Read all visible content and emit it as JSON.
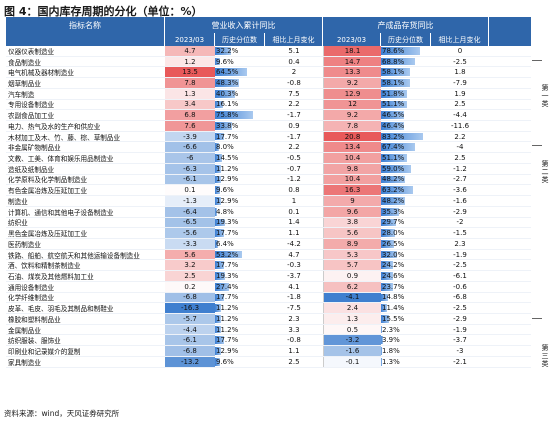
{
  "title": "图 4：国内库存周期的分化（单位：%）",
  "source": "资料来源：wind，天风证券研究所",
  "headers": {
    "indicator": "指标名称",
    "group1": "营业收入累计同比",
    "group2": "产成品存货同比",
    "date1": "2023/03",
    "hist1": "历史分位数",
    "chg1": "相比上月变化",
    "date2": "2023/03",
    "hist2": "历史分位数",
    "chg2": "相比上月变化"
  },
  "categories": {
    "cat1": "第一类",
    "cat2": "第二类",
    "cat3": "第三类"
  },
  "colors": {
    "header": "#2f66aa",
    "red": "#e8595a",
    "blue": "#3f7fcf",
    "light_red": "#f7c9c6",
    "light_blue": "#c9dbf2"
  },
  "rows": [
    {
      "name": "仪器仪表制造业",
      "rev": "4.7",
      "rev_pct": "32.2%",
      "rev_chg": "5.1",
      "inv": "18.1",
      "inv_pct": "78.6%",
      "inv_chg": "0"
    },
    {
      "name": "食品制造业",
      "rev": "1.2",
      "rev_pct": "9.6%",
      "rev_chg": "0.4",
      "inv": "14.7",
      "inv_pct": "68.8%",
      "inv_chg": "-2.5"
    },
    {
      "name": "电气机械及器材制造业",
      "rev": "13.5",
      "rev_pct": "64.5%",
      "rev_chg": "2",
      "inv": "13.3",
      "inv_pct": "58.1%",
      "inv_chg": "1.8"
    },
    {
      "name": "烟草制品业",
      "rev": "7.8",
      "rev_pct": "48.3%",
      "rev_chg": "-0.8",
      "inv": "9.2",
      "inv_pct": "58.1%",
      "inv_chg": "-7.9"
    },
    {
      "name": "汽车制造",
      "rev": "1.3",
      "rev_pct": "40.3%",
      "rev_chg": "7.5",
      "inv": "12.9",
      "inv_pct": "51.8%",
      "inv_chg": "1.9"
    },
    {
      "name": "专用设备制造业",
      "rev": "3.4",
      "rev_pct": "16.1%",
      "rev_chg": "2.2",
      "inv": "12",
      "inv_pct": "51.1%",
      "inv_chg": "2.5"
    },
    {
      "name": "农副食品加工业",
      "rev": "6.8",
      "rev_pct": "75.8%",
      "rev_chg": "-1.7",
      "inv": "9.2",
      "inv_pct": "46.5%",
      "inv_chg": "-4.4"
    },
    {
      "name": "电力、热气及水的生产和供应业",
      "rev": "7.6",
      "rev_pct": "33.8%",
      "rev_chg": "0.9",
      "inv": "7.8",
      "inv_pct": "46.4%",
      "inv_chg": "-11.6"
    },
    {
      "name": "木材加工及木、竹、藤、棕、草制品业",
      "rev": "-3.9",
      "rev_pct": "17.7%",
      "rev_chg": "-1.7",
      "inv": "20.8",
      "inv_pct": "83.2%",
      "inv_chg": "2.2"
    },
    {
      "name": "非金属矿物制品业",
      "rev": "-6.6",
      "rev_pct": "8.0%",
      "rev_chg": "2.2",
      "inv": "13.4",
      "inv_pct": "67.4%",
      "inv_chg": "-4"
    },
    {
      "name": "文教、工美、体育和娱乐用品制造业",
      "rev": "-6",
      "rev_pct": "14.5%",
      "rev_chg": "-0.5",
      "inv": "10.4",
      "inv_pct": "51.1%",
      "inv_chg": "2.5"
    },
    {
      "name": "造纸及纸制品业",
      "rev": "-6.3",
      "rev_pct": "11.2%",
      "rev_chg": "-0.7",
      "inv": "9.8",
      "inv_pct": "59.0%",
      "inv_chg": "-1.2"
    },
    {
      "name": "化学原料及化学制品制造业",
      "rev": "-6.1",
      "rev_pct": "12.9%",
      "rev_chg": "-1.2",
      "inv": "10.4",
      "inv_pct": "48.2%",
      "inv_chg": "-2.7"
    },
    {
      "name": "有色金属冶炼及压延加工业",
      "rev": "0.1",
      "rev_pct": "9.6%",
      "rev_chg": "0.8",
      "inv": "16.3",
      "inv_pct": "63.2%",
      "inv_chg": "-3.6"
    },
    {
      "name": "制造业",
      "rev": "-1.3",
      "rev_pct": "12.9%",
      "rev_chg": "1",
      "inv": "9",
      "inv_pct": "48.2%",
      "inv_chg": "-1.6"
    },
    {
      "name": "计算机、通信和其他电子设备制造业",
      "rev": "-6.4",
      "rev_pct": "4.8%",
      "rev_chg": "0.1",
      "inv": "9.6",
      "inv_pct": "35.3%",
      "inv_chg": "-2.9"
    },
    {
      "name": "纺织业",
      "rev": "-6.5",
      "rev_pct": "19.3%",
      "rev_chg": "1.4",
      "inv": "3.8",
      "inv_pct": "29.7%",
      "inv_chg": "-2"
    },
    {
      "name": "黑色金属冶炼及压延加工业",
      "rev": "-5.6",
      "rev_pct": "17.7%",
      "rev_chg": "1.1",
      "inv": "5.6",
      "inv_pct": "28.0%",
      "inv_chg": "-1.5"
    },
    {
      "name": "医药制造业",
      "rev": "-3.3",
      "rev_pct": "6.4%",
      "rev_chg": "-4.2",
      "inv": "8.9",
      "inv_pct": "26.5%",
      "inv_chg": "2.3"
    },
    {
      "name": "铁路、船舶、航空航天和其他运输设备制造业",
      "rev": "5.6",
      "rev_pct": "53.2%",
      "rev_chg": "4.7",
      "inv": "5.3",
      "inv_pct": "32.0%",
      "inv_chg": "-1.9"
    },
    {
      "name": "酒、饮料和精制茶制造业",
      "rev": "3.2",
      "rev_pct": "17.7%",
      "rev_chg": "-0.3",
      "inv": "5.7",
      "inv_pct": "24.2%",
      "inv_chg": "-2.5"
    },
    {
      "name": "石油、煤炭及其他燃料加工业",
      "rev": "2.5",
      "rev_pct": "19.3%",
      "rev_chg": "-3.7",
      "inv": "0.9",
      "inv_pct": "24.6%",
      "inv_chg": "-6.1"
    },
    {
      "name": "通用设备制造业",
      "rev": "0.2",
      "rev_pct": "27.4%",
      "rev_chg": "4.1",
      "inv": "6.2",
      "inv_pct": "23.7%",
      "inv_chg": "-0.6"
    },
    {
      "name": "化学纤维制造业",
      "rev": "-6.8",
      "rev_pct": "17.7%",
      "rev_chg": "-1.8",
      "inv": "-4.1",
      "inv_pct": "14.8%",
      "inv_chg": "-6.8"
    },
    {
      "name": "皮革、毛皮、羽毛及其制品和制鞋业",
      "rev": "-16.3",
      "rev_pct": "11.2%",
      "rev_chg": "-7.5",
      "inv": "2.4",
      "inv_pct": "11.4%",
      "inv_chg": "-2.5"
    },
    {
      "name": "橡胶和塑料制品业",
      "rev": "-5.7",
      "rev_pct": "11.2%",
      "rev_chg": "2.3",
      "inv": "1.3",
      "inv_pct": "15.5%",
      "inv_chg": "-2.9"
    },
    {
      "name": "金属制品业",
      "rev": "-4.4",
      "rev_pct": "11.2%",
      "rev_chg": "3.3",
      "inv": "0.5",
      "inv_pct": "2.3%",
      "inv_chg": "-1.9"
    },
    {
      "name": "纺织服装、服饰业",
      "rev": "-6.1",
      "rev_pct": "17.7%",
      "rev_chg": "-0.8",
      "inv": "-3.2",
      "inv_pct": "3.9%",
      "inv_chg": "-3.7"
    },
    {
      "name": "印刷业和记录媒介的复制",
      "rev": "-6.8",
      "rev_pct": "12.9%",
      "rev_chg": "1.1",
      "inv": "-1.6",
      "inv_pct": "1.8%",
      "inv_chg": "-3"
    },
    {
      "name": "家具制造业",
      "rev": "-13.2",
      "rev_pct": "9.6%",
      "rev_chg": "2.5",
      "inv": "-0.1",
      "inv_pct": "1.3%",
      "inv_chg": "-2.1"
    }
  ]
}
